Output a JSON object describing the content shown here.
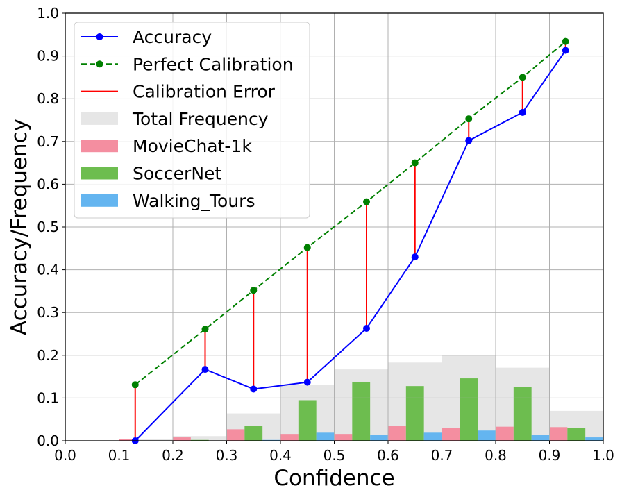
{
  "chart_data": {
    "type": "bar",
    "xlabel": "Confidence",
    "ylabel": "Accuracy/Frequency",
    "xlim": [
      0.0,
      1.0
    ],
    "ylim": [
      0.0,
      1.0
    ],
    "xticks": [
      "0.0",
      "0.1",
      "0.2",
      "0.3",
      "0.4",
      "0.5",
      "0.6",
      "0.7",
      "0.8",
      "0.9",
      "1.0"
    ],
    "yticks": [
      "0.0",
      "0.1",
      "0.2",
      "0.3",
      "0.4",
      "0.5",
      "0.6",
      "0.7",
      "0.8",
      "0.9",
      "1.0"
    ],
    "grid": true,
    "legend_position": "upper-left",
    "bin_edges": [
      0.0,
      0.1,
      0.2,
      0.3,
      0.4,
      0.5,
      0.6,
      0.7,
      0.8,
      0.9,
      1.0
    ],
    "lines": [
      {
        "name": "Accuracy",
        "color": "#0000ff",
        "style": "solid",
        "x": [
          0.13,
          0.26,
          0.35,
          0.45,
          0.56,
          0.65,
          0.75,
          0.85,
          0.93
        ],
        "y": [
          0.0,
          0.167,
          0.121,
          0.137,
          0.263,
          0.43,
          0.702,
          0.768,
          0.913
        ]
      },
      {
        "name": "Perfect Calibration",
        "color": "#008000",
        "style": "dashed",
        "x": [
          0.13,
          0.26,
          0.35,
          0.45,
          0.56,
          0.65,
          0.75,
          0.85,
          0.93
        ],
        "y": [
          0.131,
          0.261,
          0.352,
          0.452,
          0.559,
          0.65,
          0.753,
          0.85,
          0.934
        ]
      }
    ],
    "calibration_error": {
      "name": "Calibration Error",
      "color": "#ff0000"
    },
    "total_frequency": {
      "name": "Total Frequency",
      "color": "#e6e6e6",
      "values": [
        0.0,
        0.004,
        0.011,
        0.064,
        0.13,
        0.167,
        0.183,
        0.2,
        0.171,
        0.07
      ]
    },
    "series": [
      {
        "name": "MovieChat-1k",
        "color": "#f48ea0",
        "values": [
          0.0,
          0.004,
          0.008,
          0.027,
          0.016,
          0.016,
          0.035,
          0.03,
          0.033,
          0.032
        ]
      },
      {
        "name": "SoccerNet",
        "color": "#6dbd4f",
        "values": [
          0.0,
          0.0,
          0.002,
          0.035,
          0.095,
          0.138,
          0.128,
          0.146,
          0.125,
          0.03
        ]
      },
      {
        "name": "Walking_Tours",
        "color": "#64b5f0",
        "values": [
          0.0,
          0.0,
          0.0,
          0.002,
          0.019,
          0.013,
          0.019,
          0.024,
          0.013,
          0.008
        ]
      }
    ]
  }
}
